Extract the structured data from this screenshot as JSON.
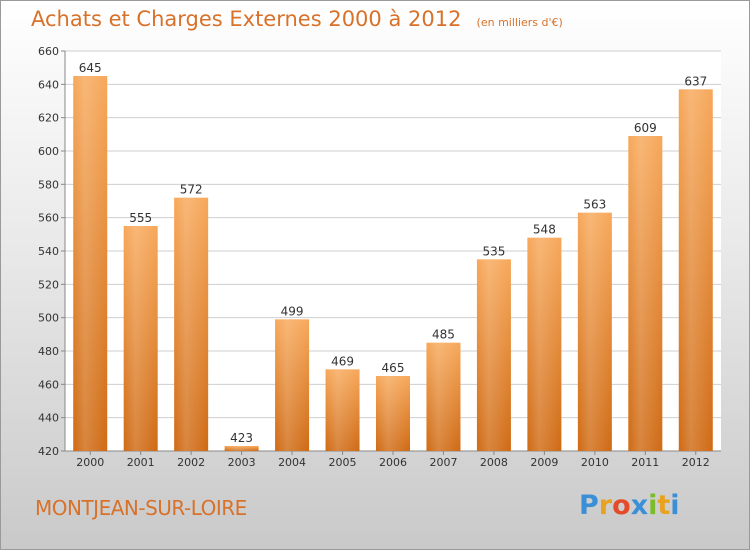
{
  "header": {
    "title": "Achats et Charges Externes 2000 à 2012",
    "subtitle": "(en milliers d'€)"
  },
  "footer": {
    "commune": "MONTJEAN-SUR-LOIRE",
    "logo_text": "Proxiti",
    "logo_colors": [
      "#3a8fd6",
      "#e8a21d",
      "#e34b2b",
      "#3a8fd6",
      "#7cbc2a",
      "#e8a21d",
      "#3a8fd6"
    ]
  },
  "colors": {
    "bar_top": "#f7a85a",
    "bar_bottom": "#cf6a14",
    "grid": "#cfcfcf",
    "plot_bg": "#ffffff",
    "accent": "#d8722a"
  },
  "chart_data": {
    "type": "bar",
    "title": "Achats et Charges Externes 2000 à 2012",
    "subtitle": "(en milliers d'€)",
    "xlabel": "",
    "ylabel": "",
    "categories": [
      "2000",
      "2001",
      "2002",
      "2003",
      "2004",
      "2005",
      "2006",
      "2007",
      "2008",
      "2009",
      "2010",
      "2011",
      "2012"
    ],
    "values": [
      645,
      555,
      572,
      423,
      499,
      469,
      465,
      485,
      535,
      548,
      563,
      609,
      637
    ],
    "ylim": [
      420,
      660
    ],
    "yticks": [
      420,
      440,
      460,
      480,
      500,
      520,
      540,
      560,
      580,
      600,
      620,
      640,
      660
    ],
    "grid": true,
    "legend": "none"
  }
}
